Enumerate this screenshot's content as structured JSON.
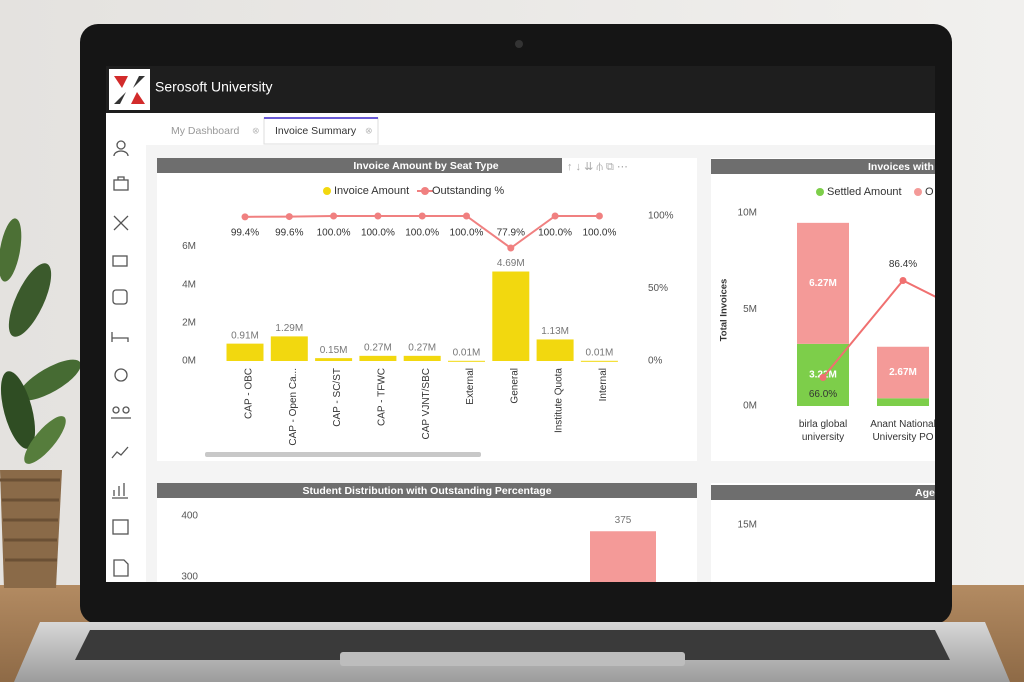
{
  "app": {
    "title": "Serosoft University"
  },
  "tabs": [
    "My Dashboard",
    "Invoice Summary"
  ],
  "panels": [
    {
      "type": "bar-line",
      "title": "Invoice Amount by Seat Type",
      "categories": [
        "CAP - OBC",
        "CAP - Open Ca...",
        "CAP - SC/ST",
        "CAP - TFWC",
        "CAP VJNT/SBC",
        "External",
        "General",
        "Institute Quota",
        "Internal"
      ],
      "series": [
        {
          "name": "Invoice Amount",
          "color": "#f2d80f",
          "values": [
            0.91,
            1.29,
            0.15,
            0.27,
            0.27,
            0.01,
            4.69,
            1.13,
            0.01
          ],
          "value_labels": [
            "0.91M",
            "1.29M",
            "0.15M",
            "0.27M",
            "0.27M",
            "0.01M",
            "4.69M",
            "1.13M",
            "0.01M"
          ]
        },
        {
          "name": "Outstanding %",
          "color": "#f08080",
          "axis": "y2",
          "values": [
            99.4,
            99.6,
            100,
            100,
            100,
            100,
            77.9,
            100,
            100
          ],
          "value_labels": [
            "99.4%",
            "99.6%",
            "100.0%",
            "100.0%",
            "100.0%",
            "100.0%",
            "77.9%",
            "100.0%",
            "100.0%"
          ]
        }
      ],
      "ylim": [
        0,
        7.6
      ],
      "yticks": [
        {
          "value": 0,
          "label": "0M"
        },
        {
          "value": 2,
          "label": "2M"
        },
        {
          "value": 4,
          "label": "4M"
        },
        {
          "value": 6,
          "label": "6M"
        }
      ],
      "y2lim": [
        0,
        100
      ],
      "y2ticks": [
        {
          "value": 0,
          "label": "0%"
        },
        {
          "value": 50,
          "label": "50%"
        },
        {
          "value": 100,
          "label": "100%"
        }
      ]
    },
    {
      "type": "stacked-bar-line",
      "title": "Invoices with",
      "y_label": "Total Invoices",
      "categories": [
        "birla global university",
        "Anant National University PO"
      ],
      "series": [
        {
          "name": "Settled Amount",
          "color": "#7dce4a",
          "values": [
            3.22,
            0.4
          ],
          "value_labels": [
            "3.22M",
            null
          ]
        },
        {
          "name": "O",
          "color": "#f49a98",
          "values": [
            6.27,
            2.67
          ],
          "value_labels": [
            "6.27M",
            "2.67M"
          ]
        },
        {
          "color": "#f07070",
          "axis": "y2",
          "values": [
            66.0,
            86.4
          ],
          "value_labels": [
            "66.0%",
            "86.4%"
          ]
        }
      ],
      "ylim": [
        0,
        10
      ],
      "yticks": [
        {
          "value": 0,
          "label": "0M"
        },
        {
          "value": 5,
          "label": "5M"
        },
        {
          "value": 10,
          "label": "10M"
        }
      ],
      "y2lim": [
        60,
        100.6
      ]
    },
    {
      "type": "bar",
      "title": "Student Distribution with Outstanding Percentage",
      "series": [
        {
          "color": "#f49a98",
          "values": [
            375
          ]
        }
      ],
      "ylim": [
        300,
        400
      ],
      "yticks": [
        300,
        400
      ]
    },
    {
      "type": "bar",
      "title": "Age",
      "yticks": [
        {
          "value": 15,
          "label": "15M"
        }
      ]
    }
  ]
}
